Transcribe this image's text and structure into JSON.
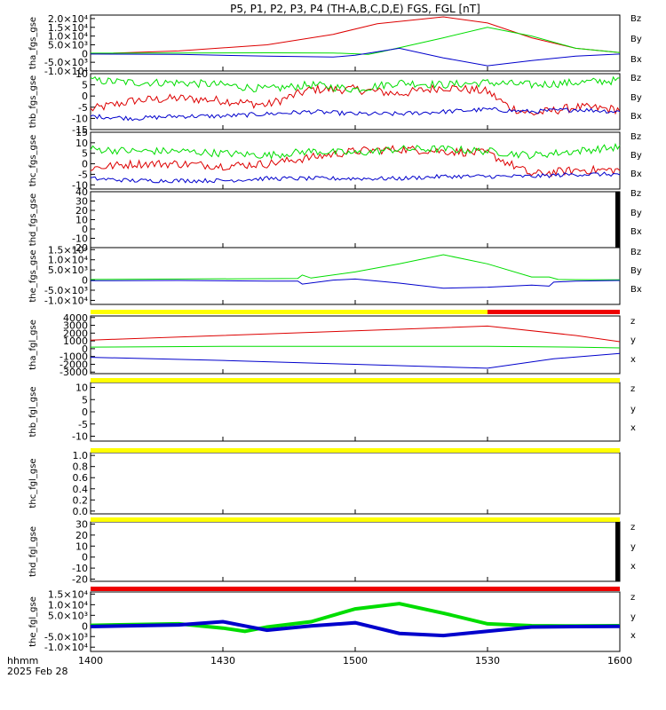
{
  "title": "P5, P1, P2, P3, P4 (TH-A,B,C,D,E) FGS, FGL [nT]",
  "footer": {
    "time_label": "hhmm",
    "date_label": "2025 Feb 28"
  },
  "colors": {
    "red": "#dd0000",
    "green": "#00dd00",
    "blue": "#0000cc",
    "yellow": "#ffff00",
    "bar_red": "#ee0000"
  },
  "chart_data": {
    "type": "line",
    "x_axis": {
      "ticks": [
        "1400",
        "1430",
        "1500",
        "1530",
        "1600"
      ],
      "range_minutes": [
        0,
        120
      ]
    },
    "panels": [
      {
        "id": "tha_fgs",
        "ylabel": "tha_fgs_gse",
        "yticks": [
          "2.0×10⁴",
          "1.5×10⁴",
          "1.0×10⁴",
          "5.0×10³",
          "0",
          "-5.0×10³",
          "-1.0×10⁴"
        ],
        "ytick_values": [
          20000,
          15000,
          10000,
          5000,
          0,
          -5000,
          -10000
        ],
        "ylim": [
          -10000,
          22000
        ],
        "legend": [
          "Bz",
          "By",
          "Bx"
        ],
        "series": [
          {
            "name": "Bz",
            "color": "red",
            "x": [
              0,
              20,
              40,
              55,
              65,
              80,
              90,
              100,
              110,
              120
            ],
            "y": [
              -200,
              1500,
              5000,
              11000,
              17000,
              21000,
              17500,
              9000,
              3000,
              500
            ]
          },
          {
            "name": "By",
            "color": "green",
            "x": [
              0,
              20,
              40,
              55,
              63,
              66,
              80,
              90,
              100,
              110,
              120
            ],
            "y": [
              200,
              300,
              400,
              300,
              -500,
              1000,
              9000,
              15000,
              10000,
              3000,
              500
            ]
          },
          {
            "name": "Bx",
            "color": "blue",
            "x": [
              0,
              20,
              40,
              55,
              60,
              70,
              80,
              90,
              100,
              110,
              120
            ],
            "y": [
              -300,
              -500,
              -1500,
              -2000,
              -1000,
              3000,
              -2500,
              -7000,
              -4000,
              -1500,
              -300
            ]
          }
        ]
      },
      {
        "id": "thb_fgs",
        "ylabel": "thb_fgs_gse",
        "yticks": [
          "10",
          "5",
          "0",
          "-5",
          "-10",
          "-15"
        ],
        "ytick_values": [
          10,
          5,
          0,
          -5,
          -10,
          -15
        ],
        "ylim": [
          -15,
          10
        ],
        "legend": [
          "Bz",
          "By",
          "Bx"
        ],
        "series": [
          {
            "name": "Bz",
            "color": "red",
            "x": [
              0,
              10,
              20,
              30,
              40,
              50,
              60,
              70,
              80,
              90,
              95,
              100,
              110,
              120
            ],
            "y": [
              -6,
              -2,
              -1,
              -2,
              -4,
              3,
              3,
              1,
              4,
              2,
              -5,
              -8,
              -5,
              -6
            ],
            "noise": 2.0
          },
          {
            "name": "By",
            "color": "green",
            "x": [
              0,
              10,
              20,
              30,
              40,
              50,
              60,
              70,
              80,
              90,
              100,
              110,
              120
            ],
            "y": [
              7,
              6,
              6,
              5,
              3,
              5,
              3,
              6,
              5,
              6,
              5,
              6,
              7
            ],
            "noise": 1.8
          },
          {
            "name": "Bx",
            "color": "blue",
            "x": [
              0,
              10,
              20,
              30,
              40,
              50,
              60,
              70,
              80,
              90,
              100,
              110,
              120
            ],
            "y": [
              -9,
              -10,
              -9,
              -9,
              -8,
              -7,
              -8,
              -8,
              -7,
              -6,
              -7,
              -6,
              -7
            ],
            "noise": 1.0
          }
        ]
      },
      {
        "id": "thc_fgs",
        "ylabel": "thc_fgs_gse",
        "yticks": [
          "15",
          "10",
          "5",
          "0",
          "-5",
          "-10"
        ],
        "ytick_values": [
          15,
          10,
          5,
          0,
          -5,
          -10
        ],
        "ylim": [
          -12,
          15
        ],
        "legend": [
          "Bz",
          "By",
          "Bx"
        ],
        "series": [
          {
            "name": "Bz",
            "color": "red",
            "x": [
              0,
              10,
              20,
              30,
              40,
              50,
              60,
              70,
              80,
              90,
              100,
              110,
              120
            ],
            "y": [
              -2,
              0,
              0,
              -1,
              0,
              3,
              6,
              7,
              6,
              5,
              -5,
              -3,
              -3
            ],
            "noise": 2.0
          },
          {
            "name": "By",
            "color": "green",
            "x": [
              0,
              10,
              20,
              30,
              40,
              50,
              60,
              70,
              80,
              90,
              100,
              110,
              120
            ],
            "y": [
              7,
              6,
              6,
              5,
              4,
              6,
              5,
              7,
              7,
              6,
              4,
              6,
              8
            ],
            "noise": 1.8
          },
          {
            "name": "Bx",
            "color": "blue",
            "x": [
              0,
              10,
              20,
              30,
              40,
              50,
              60,
              70,
              80,
              90,
              100,
              110,
              120
            ],
            "y": [
              -7,
              -8,
              -8,
              -8,
              -7,
              -7,
              -7,
              -7,
              -6,
              -6,
              -6,
              -5,
              -5
            ],
            "noise": 1.0
          }
        ]
      },
      {
        "id": "thd_fgs",
        "ylabel": "thd_fgs_gse",
        "yticks": [
          "40",
          "30",
          "20",
          "10",
          "0",
          "-10",
          "-20"
        ],
        "ytick_values": [
          40,
          30,
          20,
          10,
          0,
          -10,
          -20
        ],
        "ylim": [
          -20,
          40
        ],
        "legend": [
          "Bz",
          "By",
          "Bx"
        ],
        "series": [],
        "right_edge_black": true
      },
      {
        "id": "the_fgs",
        "ylabel": "the_fgs_gse",
        "yticks": [
          "1.5×10⁴",
          "1.0×10⁴",
          "5.0×10³",
          "0",
          "-5.0×10³",
          "-1.0×10⁴"
        ],
        "ytick_values": [
          15000,
          10000,
          5000,
          0,
          -5000,
          -10000
        ],
        "ylim": [
          -12000,
          16000
        ],
        "legend": [
          "Bz",
          "By",
          "Bx"
        ],
        "series": [
          {
            "name": "By",
            "color": "green",
            "x": [
              0,
              20,
              40,
              47,
              48,
              50,
              60,
              70,
              80,
              90,
              100,
              104,
              106,
              110,
              120
            ],
            "y": [
              300,
              500,
              700,
              800,
              2500,
              1000,
              4000,
              8000,
              12500,
              8000,
              1500,
              1500,
              300,
              200,
              100
            ]
          },
          {
            "name": "Bx",
            "color": "blue",
            "x": [
              0,
              20,
              40,
              47,
              48,
              55,
              60,
              70,
              80,
              90,
              100,
              104,
              105,
              110,
              120
            ],
            "y": [
              -300,
              -200,
              -500,
              -500,
              -2000,
              0,
              500,
              -1500,
              -4000,
              -3500,
              -2500,
              -3000,
              -1000,
              -500,
              -200
            ]
          }
        ],
        "status_bar": [
          {
            "from": 0,
            "to": 90,
            "color": "yellow"
          },
          {
            "from": 90,
            "to": 120,
            "color": "bar_red"
          }
        ]
      },
      {
        "id": "tha_fgl",
        "ylabel": "tha_fgl_gse",
        "yticks": [
          "4000",
          "3000",
          "2000",
          "1000",
          "0",
          "-1000",
          "-2000",
          "-3000"
        ],
        "ytick_values": [
          4000,
          3000,
          2000,
          1000,
          0,
          -1000,
          -2000,
          -3000
        ],
        "ylim": [
          -3200,
          4200
        ],
        "legend": [
          "z",
          "y",
          "x"
        ],
        "series": [
          {
            "name": "z",
            "color": "red",
            "x": [
              0,
              30,
              60,
              90,
              110,
              120
            ],
            "y": [
              1100,
              1700,
              2300,
              2900,
              1700,
              900
            ]
          },
          {
            "name": "y",
            "color": "green",
            "x": [
              0,
              30,
              60,
              90,
              110,
              120
            ],
            "y": [
              200,
              300,
              300,
              300,
              200,
              100
            ]
          },
          {
            "name": "x",
            "color": "blue",
            "x": [
              0,
              30,
              60,
              90,
              105,
              120
            ],
            "y": [
              -1100,
              -1500,
              -2000,
              -2500,
              -1300,
              -600
            ]
          }
        ]
      },
      {
        "id": "thb_fgl",
        "ylabel": "thb_fgl_gse",
        "yticks": [
          "10",
          "5",
          "0",
          "-5",
          "-10"
        ],
        "ytick_values": [
          10,
          5,
          0,
          -5,
          -10
        ],
        "ylim": [
          -12,
          12
        ],
        "legend": [
          "z",
          "y",
          "x"
        ],
        "series": [],
        "status_bar": [
          {
            "from": 0,
            "to": 120,
            "color": "yellow"
          }
        ]
      },
      {
        "id": "thc_fgl",
        "ylabel": "thc_fgl_gse",
        "yticks": [
          "1.0",
          "0.8",
          "0.6",
          "0.4",
          "0.2",
          "0.0"
        ],
        "ytick_values": [
          1.0,
          0.8,
          0.6,
          0.4,
          0.2,
          0.0
        ],
        "ylim": [
          -0.05,
          1.05
        ],
        "legend": [],
        "series": [],
        "status_bar": [
          {
            "from": 0,
            "to": 120,
            "color": "yellow"
          }
        ]
      },
      {
        "id": "thd_fgl",
        "ylabel": "thd_fgl_gse",
        "yticks": [
          "30",
          "20",
          "10",
          "0",
          "-10",
          "-20"
        ],
        "ytick_values": [
          30,
          20,
          10,
          0,
          -10,
          -20
        ],
        "ylim": [
          -22,
          32
        ],
        "legend": [
          "z",
          "y",
          "x"
        ],
        "series": [],
        "right_edge_black": true,
        "status_bar": [
          {
            "from": 0,
            "to": 120,
            "color": "yellow"
          }
        ]
      },
      {
        "id": "the_fgl",
        "ylabel": "the_fgl_gse",
        "yticks": [
          "1.5×10⁴",
          "1.0×10⁴",
          "5.0×10³",
          "0",
          "-5.0×10³",
          "-1.0×10⁴"
        ],
        "ytick_values": [
          15000,
          10000,
          5000,
          0,
          -5000,
          -10000
        ],
        "ylim": [
          -12000,
          16000
        ],
        "legend": [
          "z",
          "y",
          "x"
        ],
        "series": [
          {
            "name": "y",
            "color": "green",
            "width": 4,
            "x": [
              0,
              20,
              30,
              35,
              40,
              50,
              60,
              70,
              80,
              90,
              100,
              110,
              120
            ],
            "y": [
              300,
              1000,
              -1000,
              -2500,
              -500,
              2000,
              8000,
              10500,
              6000,
              1000,
              100,
              0,
              100
            ]
          },
          {
            "name": "x",
            "color": "blue",
            "width": 4,
            "x": [
              0,
              20,
              30,
              35,
              40,
              50,
              60,
              70,
              80,
              90,
              100,
              110,
              120
            ],
            "y": [
              -300,
              500,
              2000,
              0,
              -2000,
              0,
              1500,
              -3500,
              -4500,
              -2500,
              -500,
              -300,
              -200
            ]
          }
        ],
        "status_bar": [
          {
            "from": 0,
            "to": 120,
            "color": "bar_red"
          }
        ]
      }
    ]
  }
}
